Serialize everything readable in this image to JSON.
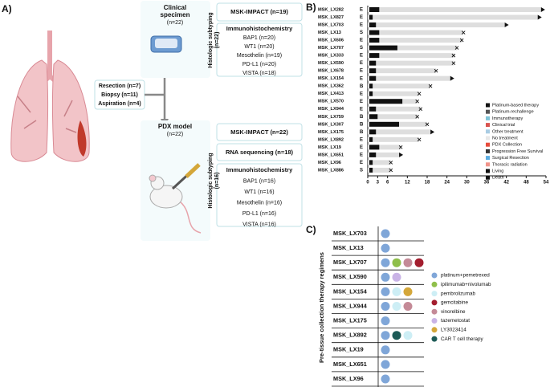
{
  "panel_a": {
    "label": "A)",
    "sources": [
      "Resection (n=7)",
      "Biopsy (n=11)",
      "Aspiration (n=4)"
    ],
    "clinical": {
      "title": [
        "Clinical",
        "specimen"
      ],
      "n": "(n=22)",
      "subtyping": [
        "Histologic subtyping",
        "(n=22)"
      ],
      "assays": [
        "MSK-IMPACT (n=19)"
      ],
      "ihc_title": "Immunohistochemistry",
      "ihc": [
        "BAP1 (n=20)",
        "WT1 (n=20)",
        "Mesothelin (n=19)",
        "PD-L1 (n=20)",
        "VISTA (n=18)"
      ]
    },
    "pdx": {
      "title": [
        "PDX model"
      ],
      "n": "(n=22)",
      "subtyping": [
        "Histologic subtyping",
        "(n=16)"
      ],
      "assays": [
        "MSK-IMPACT (n=22)",
        "RNA sequencing (n=18)"
      ],
      "ihc_title": "Immunohistochemistry",
      "ihc": [
        "BAP1 (n=16)",
        "WT1 (n=16)",
        "Mesothelin (n=16)",
        "PD-L1 (n=16)",
        "VISTA (n=16)"
      ]
    }
  },
  "chart_data": {
    "type": "swimmer",
    "label": "B)",
    "categories": [
      "MSK_LX282",
      "MSK_LX827",
      "MSK_LX703",
      "MSK_LX13",
      "MSK_LX606",
      "MSK_LX707",
      "MSK_LX333",
      "MSK_LX590",
      "MSK_LX678",
      "MSK_LX154",
      "MSK_LX362",
      "MSK_LX413",
      "MSK_LX570",
      "MSK_LX944",
      "MSK_LX759",
      "MSK_LX307",
      "MSK_LX175",
      "MSK_LX892",
      "MSK_LX19",
      "MSK_LX651",
      "MSK_LX96",
      "MSK_LX886"
    ],
    "subtypes": [
      "E",
      "E",
      "E",
      "S",
      "E",
      "S",
      "E",
      "E",
      "E",
      "E",
      "B",
      "E",
      "E",
      "E",
      "B",
      "B",
      "B",
      "E",
      "E",
      "E",
      "E",
      "S"
    ],
    "values": [
      52.5,
      51.5,
      41.5,
      29,
      28.5,
      27,
      26,
      26,
      20.7,
      25,
      19,
      15.6,
      15,
      16,
      15,
      18,
      19,
      15.6,
      10,
      9.5,
      7,
      7
    ],
    "series": [
      {
        "name": "Platinum-based therapy",
        "color": "#111111",
        "values": [
          3,
          1,
          2,
          3,
          3,
          8.5,
          3,
          2,
          2,
          2,
          1,
          1,
          10,
          2,
          2.5,
          9,
          2,
          1,
          3,
          2,
          1,
          1
        ]
      }
    ],
    "living": [
      true,
      true,
      true,
      false,
      false,
      false,
      false,
      false,
      false,
      true,
      false,
      false,
      false,
      false,
      false,
      false,
      true,
      false,
      false,
      true,
      false,
      false
    ],
    "bar_color": "#dedede",
    "subtype_color": "#c0392b",
    "xlim": [
      0,
      54
    ],
    "xticks": [
      0,
      3,
      6,
      12,
      18,
      24,
      30,
      36,
      42,
      48,
      54
    ],
    "legend": [
      {
        "label": "Platinum-based therapy",
        "color": "#111111"
      },
      {
        "label": "Platinum-rechallenge",
        "color": "#555555"
      },
      {
        "label": "Immunotherapy",
        "color": "#7fc4d8"
      },
      {
        "label": "Clinical trial",
        "color": "#d9534f"
      },
      {
        "label": "Other treatment",
        "color": "#a9cce3"
      },
      {
        "label": "No treatment",
        "color": "#e8e8e8"
      },
      {
        "label": "PDX Collection",
        "color": "#e74c3c"
      },
      {
        "label": "Progression Free Survival",
        "color": "#333333"
      },
      {
        "label": "Surgical Resection",
        "color": "#5dade2"
      },
      {
        "label": "Thoracic radiation",
        "color": "#f1948a"
      },
      {
        "label": "Living",
        "color": "#111111"
      },
      {
        "label": "Death",
        "color": "#111111"
      }
    ]
  },
  "panel_c": {
    "label": "C)",
    "ylabel": "Pre-tissue collection therapy regimens",
    "rows": [
      "MSK_LX703",
      "MSK_LX13",
      "MSK_LX707",
      "MSK_LX590",
      "MSK_LX154",
      "MSK_LX944",
      "MSK_LX175",
      "MSK_LX892",
      "MSK_LX19",
      "MSK_LX651",
      "MSK_LX96"
    ],
    "regimens": [
      {
        "name": "platinum+pemetrexed",
        "color": "#7fa6d8"
      },
      {
        "name": "ipilimumab+nivolumab",
        "color": "#8fbf4a"
      },
      {
        "name": "pembrolizumab",
        "color": "#cdeef5"
      },
      {
        "name": "gemcitabine",
        "color": "#a31d2e"
      },
      {
        "name": "vinorelbine",
        "color": "#c48a97"
      },
      {
        "name": "tazemetostat",
        "color": "#c9b3e6"
      },
      {
        "name": "LY3023414",
        "color": "#d4a73a"
      },
      {
        "name": "CAR T cell therapy",
        "color": "#1d5b57"
      }
    ],
    "row_regimens": [
      [
        0
      ],
      [
        0
      ],
      [
        0,
        1,
        4,
        3
      ],
      [
        0,
        5
      ],
      [
        0,
        2,
        6
      ],
      [
        0,
        2,
        4
      ],
      [
        0
      ],
      [
        0,
        7,
        2
      ],
      [
        0
      ],
      [
        0
      ],
      [
        0
      ]
    ]
  }
}
